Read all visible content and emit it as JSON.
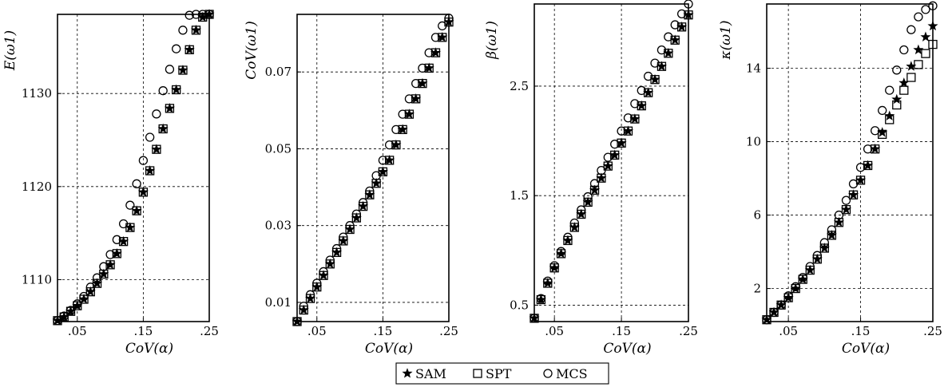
{
  "legend": {
    "entries": [
      {
        "symbol": "star",
        "label": "SAM"
      },
      {
        "symbol": "square",
        "label": "SPT"
      },
      {
        "symbol": "circle",
        "label": "MCS"
      }
    ]
  },
  "chart_data": [
    {
      "type": "scatter",
      "ylabel": "E(ω1)",
      "xlabel": "CoV(α)",
      "xlim": [
        0.02,
        0.25
      ],
      "ylim": [
        1105.5,
        1138.5
      ],
      "xticks": [
        0.05,
        0.15,
        0.25
      ],
      "yticks": [
        1110,
        1120,
        1130
      ],
      "x": [
        0.02,
        0.03,
        0.04,
        0.05,
        0.06,
        0.07,
        0.08,
        0.09,
        0.1,
        0.11,
        0.12,
        0.13,
        0.14,
        0.15,
        0.16,
        0.17,
        0.18,
        0.19,
        0.2,
        0.21,
        0.22,
        0.23,
        0.24,
        0.25
      ],
      "series": [
        {
          "name": "SAM",
          "marker": "star",
          "values": [
            1105.6,
            1106.0,
            1106.6,
            1107.2,
            1107.9,
            1108.7,
            1109.6,
            1110.6,
            1111.6,
            1112.8,
            1114.1,
            1115.6,
            1117.4,
            1119.4,
            1121.7,
            1124.0,
            1126.2,
            1128.4,
            1130.4,
            1132.5,
            1134.7,
            1136.8,
            1138.2,
            1138.5
          ]
        },
        {
          "name": "SPT",
          "marker": "square",
          "values": [
            1105.6,
            1106.0,
            1106.6,
            1107.2,
            1107.9,
            1108.7,
            1109.6,
            1110.6,
            1111.6,
            1112.8,
            1114.1,
            1115.6,
            1117.4,
            1119.4,
            1121.7,
            1124.0,
            1126.2,
            1128.4,
            1130.4,
            1132.5,
            1134.7,
            1136.8,
            1138.2,
            1138.5
          ]
        },
        {
          "name": "MCS",
          "marker": "circle",
          "values": [
            1105.6,
            1106.1,
            1106.7,
            1107.4,
            1108.2,
            1109.2,
            1110.2,
            1111.4,
            1112.7,
            1114.3,
            1116.0,
            1118.0,
            1120.3,
            1122.8,
            1125.3,
            1127.8,
            1130.3,
            1132.6,
            1134.8,
            1136.8,
            1138.4,
            1138.5,
            1138.5,
            1138.5
          ]
        }
      ]
    },
    {
      "type": "scatter",
      "ylabel": "CoV(ω1)",
      "xlabel": "CoV(α)",
      "xlim": [
        0.02,
        0.25
      ],
      "ylim": [
        0.005,
        0.085
      ],
      "xticks": [
        0.05,
        0.15,
        0.25
      ],
      "yticks": [
        0.01,
        0.03,
        0.05,
        0.07
      ],
      "x": [
        0.02,
        0.03,
        0.04,
        0.05,
        0.06,
        0.07,
        0.08,
        0.09,
        0.1,
        0.11,
        0.12,
        0.13,
        0.14,
        0.15,
        0.16,
        0.17,
        0.18,
        0.19,
        0.2,
        0.21,
        0.22,
        0.23,
        0.24,
        0.25
      ],
      "series": [
        {
          "name": "SAM",
          "marker": "star",
          "values": [
            0.005,
            0.008,
            0.011,
            0.014,
            0.017,
            0.02,
            0.023,
            0.026,
            0.029,
            0.032,
            0.035,
            0.038,
            0.041,
            0.044,
            0.047,
            0.051,
            0.055,
            0.059,
            0.063,
            0.067,
            0.071,
            0.075,
            0.079,
            0.083
          ]
        },
        {
          "name": "SPT",
          "marker": "square",
          "values": [
            0.005,
            0.008,
            0.011,
            0.014,
            0.017,
            0.02,
            0.023,
            0.026,
            0.029,
            0.032,
            0.035,
            0.038,
            0.041,
            0.044,
            0.047,
            0.051,
            0.055,
            0.059,
            0.063,
            0.067,
            0.071,
            0.075,
            0.079,
            0.083
          ]
        },
        {
          "name": "MCS",
          "marker": "circle",
          "values": [
            0.005,
            0.009,
            0.012,
            0.015,
            0.018,
            0.021,
            0.024,
            0.027,
            0.03,
            0.033,
            0.036,
            0.039,
            0.043,
            0.047,
            0.051,
            0.055,
            0.059,
            0.063,
            0.067,
            0.071,
            0.075,
            0.079,
            0.082,
            0.084
          ]
        }
      ]
    },
    {
      "type": "scatter",
      "ylabel": "β(ω1)",
      "xlabel": "CoV(α)",
      "xlim": [
        0.02,
        0.25
      ],
      "ylim": [
        0.35,
        3.25
      ],
      "xticks": [
        0.05,
        0.15,
        0.25
      ],
      "yticks": [
        0.5,
        1.5,
        2.5
      ],
      "x": [
        0.02,
        0.03,
        0.04,
        0.05,
        0.06,
        0.07,
        0.08,
        0.09,
        0.1,
        0.11,
        0.12,
        0.13,
        0.14,
        0.15,
        0.16,
        0.17,
        0.18,
        0.19,
        0.2,
        0.21,
        0.22,
        0.23,
        0.24,
        0.25
      ],
      "series": [
        {
          "name": "SAM",
          "marker": "star",
          "values": [
            0.38,
            0.55,
            0.7,
            0.84,
            0.97,
            1.09,
            1.21,
            1.33,
            1.44,
            1.55,
            1.66,
            1.77,
            1.87,
            1.98,
            2.09,
            2.2,
            2.32,
            2.44,
            2.56,
            2.68,
            2.8,
            2.92,
            3.04,
            3.15
          ]
        },
        {
          "name": "SPT",
          "marker": "square",
          "values": [
            0.38,
            0.55,
            0.7,
            0.84,
            0.97,
            1.09,
            1.21,
            1.33,
            1.44,
            1.55,
            1.66,
            1.77,
            1.87,
            1.98,
            2.09,
            2.2,
            2.32,
            2.44,
            2.56,
            2.68,
            2.8,
            2.92,
            3.04,
            3.15
          ]
        },
        {
          "name": "MCS",
          "marker": "circle",
          "values": [
            0.38,
            0.56,
            0.72,
            0.86,
            0.99,
            1.12,
            1.25,
            1.37,
            1.49,
            1.61,
            1.73,
            1.85,
            1.97,
            2.09,
            2.21,
            2.34,
            2.46,
            2.59,
            2.71,
            2.83,
            2.95,
            3.06,
            3.16,
            3.25
          ]
        }
      ]
    },
    {
      "type": "scatter",
      "ylabel": "κ(ω1)",
      "xlabel": "CoV(α)",
      "xlim": [
        0.02,
        0.25
      ],
      "ylim": [
        0.2,
        17.5
      ],
      "xticks": [
        0.05,
        0.15,
        0.25
      ],
      "yticks": [
        2,
        6,
        10,
        14
      ],
      "x": [
        0.02,
        0.03,
        0.04,
        0.05,
        0.06,
        0.07,
        0.08,
        0.09,
        0.1,
        0.11,
        0.12,
        0.13,
        0.14,
        0.15,
        0.16,
        0.17,
        0.18,
        0.19,
        0.2,
        0.21,
        0.22,
        0.23,
        0.24,
        0.25
      ],
      "series": [
        {
          "name": "SAM",
          "marker": "star",
          "values": [
            0.3,
            0.7,
            1.1,
            1.5,
            2.0,
            2.5,
            3.0,
            3.6,
            4.2,
            4.9,
            5.6,
            6.3,
            7.1,
            7.9,
            8.7,
            9.6,
            10.5,
            11.4,
            12.3,
            13.2,
            14.1,
            15.0,
            15.7,
            16.3
          ]
        },
        {
          "name": "SPT",
          "marker": "square",
          "values": [
            0.3,
            0.7,
            1.1,
            1.5,
            2.0,
            2.5,
            3.0,
            3.6,
            4.2,
            4.9,
            5.6,
            6.3,
            7.1,
            7.9,
            8.7,
            9.6,
            10.4,
            11.2,
            12.0,
            12.8,
            13.5,
            14.2,
            14.8,
            15.3
          ]
        },
        {
          "name": "MCS",
          "marker": "circle",
          "values": [
            0.3,
            0.7,
            1.1,
            1.6,
            2.1,
            2.6,
            3.2,
            3.8,
            4.5,
            5.2,
            6.0,
            6.8,
            7.7,
            8.6,
            9.6,
            10.6,
            11.7,
            12.8,
            13.9,
            15.0,
            16.1,
            16.8,
            17.2,
            17.4
          ]
        }
      ]
    }
  ]
}
